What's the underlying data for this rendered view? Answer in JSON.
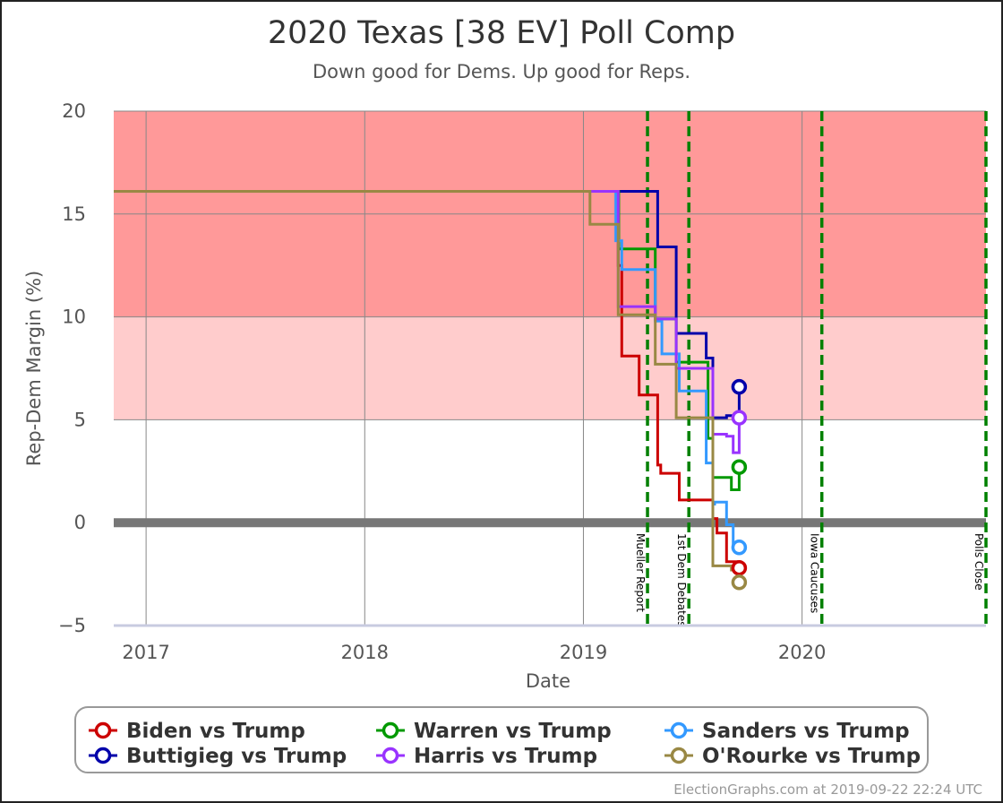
{
  "chart_data": {
    "type": "line",
    "title": "2020 Texas [38 EV] Poll Comp",
    "subtitle": "Down good for Dems. Up good for Reps.",
    "xlabel": "Date",
    "ylabel": "Rep-Dem Margin (%)",
    "xlim": [
      "2016-11-08",
      "2020-11-03"
    ],
    "ylim": [
      -5,
      20
    ],
    "x_ticks": [
      {
        "date": "2017-01-01",
        "label": "2017"
      },
      {
        "date": "2018-01-01",
        "label": "2018"
      },
      {
        "date": "2019-01-01",
        "label": "2019"
      },
      {
        "date": "2020-01-01",
        "label": "2020"
      }
    ],
    "y_ticks": [
      -5,
      0,
      5,
      10,
      15,
      20
    ],
    "bands": [
      {
        "from": 10,
        "to": 20,
        "color": "#ff9999"
      },
      {
        "from": 5,
        "to": 10,
        "color": "#ffcccc"
      }
    ],
    "zero_line": 0,
    "events": [
      {
        "date": "2019-04-18",
        "label": "Mueller Report"
      },
      {
        "date": "2019-06-26",
        "label": "1st Dem Debates"
      },
      {
        "date": "2020-02-03",
        "label": "Iowa Caucuses"
      },
      {
        "date": "2020-11-03",
        "label": "Polls Close"
      }
    ],
    "event_color": "#008000",
    "series": [
      {
        "name": "Biden vs Trump",
        "color": "#cc0000",
        "points": [
          [
            "2016-11-08",
            16.1
          ],
          [
            "2019-02-28",
            16.1
          ],
          [
            "2019-02-28",
            12.5
          ],
          [
            "2019-03-06",
            12.5
          ],
          [
            "2019-03-06",
            8.1
          ],
          [
            "2019-04-04",
            8.1
          ],
          [
            "2019-04-04",
            6.2
          ],
          [
            "2019-05-05",
            6.2
          ],
          [
            "2019-05-05",
            2.8
          ],
          [
            "2019-05-10",
            2.8
          ],
          [
            "2019-05-10",
            2.4
          ],
          [
            "2019-06-10",
            2.4
          ],
          [
            "2019-06-10",
            1.1
          ],
          [
            "2019-08-05",
            1.1
          ],
          [
            "2019-08-05",
            0.2
          ],
          [
            "2019-08-12",
            0.2
          ],
          [
            "2019-08-12",
            -0.5
          ],
          [
            "2019-08-28",
            -0.5
          ],
          [
            "2019-08-28",
            -1.9
          ],
          [
            "2019-09-18",
            -1.9
          ],
          [
            "2019-09-18",
            -2.2
          ]
        ]
      },
      {
        "name": "Buttigieg vs Trump",
        "color": "#0000aa",
        "points": [
          [
            "2016-11-08",
            16.1
          ],
          [
            "2019-05-05",
            16.1
          ],
          [
            "2019-05-05",
            13.4
          ],
          [
            "2019-06-05",
            13.4
          ],
          [
            "2019-06-05",
            9.2
          ],
          [
            "2019-07-25",
            9.2
          ],
          [
            "2019-07-25",
            8.0
          ],
          [
            "2019-08-05",
            8.0
          ],
          [
            "2019-08-05",
            5.1
          ],
          [
            "2019-08-28",
            5.1
          ],
          [
            "2019-08-28",
            5.2
          ],
          [
            "2019-09-12",
            5.2
          ],
          [
            "2019-09-12",
            5.3
          ],
          [
            "2019-09-18",
            5.3
          ],
          [
            "2019-09-18",
            6.6
          ]
        ]
      },
      {
        "name": "Warren vs Trump",
        "color": "#009900",
        "points": [
          [
            "2016-11-08",
            16.1
          ],
          [
            "2019-03-01",
            16.1
          ],
          [
            "2019-03-01",
            13.3
          ],
          [
            "2019-05-01",
            13.3
          ],
          [
            "2019-05-01",
            9.9
          ],
          [
            "2019-06-05",
            9.9
          ],
          [
            "2019-06-05",
            7.8
          ],
          [
            "2019-07-28",
            7.8
          ],
          [
            "2019-07-28",
            4.1
          ],
          [
            "2019-08-05",
            4.1
          ],
          [
            "2019-08-05",
            2.2
          ],
          [
            "2019-09-05",
            2.2
          ],
          [
            "2019-09-05",
            1.6
          ],
          [
            "2019-09-18",
            1.6
          ],
          [
            "2019-09-18",
            2.7
          ]
        ]
      },
      {
        "name": "Sanders vs Trump",
        "color": "#3399ff",
        "points": [
          [
            "2016-11-08",
            16.1
          ],
          [
            "2019-02-24",
            16.1
          ],
          [
            "2019-02-24",
            13.7
          ],
          [
            "2019-03-06",
            13.7
          ],
          [
            "2019-03-06",
            12.3
          ],
          [
            "2019-05-01",
            12.3
          ],
          [
            "2019-05-01",
            9.8
          ],
          [
            "2019-05-12",
            9.8
          ],
          [
            "2019-05-12",
            8.2
          ],
          [
            "2019-06-10",
            8.2
          ],
          [
            "2019-06-10",
            6.4
          ],
          [
            "2019-07-25",
            6.4
          ],
          [
            "2019-07-25",
            2.9
          ],
          [
            "2019-08-05",
            2.9
          ],
          [
            "2019-08-05",
            0.9
          ],
          [
            "2019-08-08",
            0.9
          ],
          [
            "2019-08-08",
            1.0
          ],
          [
            "2019-08-28",
            1.0
          ],
          [
            "2019-08-28",
            -0.1
          ],
          [
            "2019-09-08",
            -0.1
          ],
          [
            "2019-09-08",
            -1.2
          ],
          [
            "2019-09-18",
            -1.2
          ]
        ]
      },
      {
        "name": "Harris vs Trump",
        "color": "#9933ff",
        "points": [
          [
            "2016-11-08",
            16.1
          ],
          [
            "2019-02-28",
            16.1
          ],
          [
            "2019-02-28",
            10.5
          ],
          [
            "2019-05-01",
            10.5
          ],
          [
            "2019-05-01",
            9.9
          ],
          [
            "2019-06-05",
            9.9
          ],
          [
            "2019-06-05",
            7.5
          ],
          [
            "2019-08-05",
            7.5
          ],
          [
            "2019-08-05",
            4.3
          ],
          [
            "2019-08-28",
            4.3
          ],
          [
            "2019-08-28",
            4.2
          ],
          [
            "2019-09-08",
            4.2
          ],
          [
            "2019-09-08",
            3.4
          ],
          [
            "2019-09-18",
            3.4
          ],
          [
            "2019-09-18",
            5.1
          ]
        ]
      },
      {
        "name": "O'Rourke vs Trump",
        "color": "#998844",
        "points": [
          [
            "2016-11-08",
            16.1
          ],
          [
            "2019-01-12",
            16.1
          ],
          [
            "2019-01-12",
            14.5
          ],
          [
            "2019-02-28",
            14.5
          ],
          [
            "2019-02-28",
            10.1
          ],
          [
            "2019-05-01",
            10.1
          ],
          [
            "2019-05-01",
            7.7
          ],
          [
            "2019-06-05",
            7.7
          ],
          [
            "2019-06-05",
            5.1
          ],
          [
            "2019-08-05",
            5.1
          ],
          [
            "2019-08-05",
            -2.1
          ],
          [
            "2019-09-05",
            -2.1
          ],
          [
            "2019-09-05",
            -2.3
          ],
          [
            "2019-09-18",
            -2.3
          ],
          [
            "2019-09-18",
            -2.9
          ]
        ]
      }
    ],
    "legend": {
      "placement": "bottom",
      "entries": [
        "Biden vs Trump",
        "Warren vs Trump",
        "Sanders vs Trump",
        "Buttigieg vs Trump",
        "Harris vs Trump",
        "O'Rourke vs Trump"
      ]
    }
  },
  "credit": "ElectionGraphs.com at 2019-09-22 22:24 UTC"
}
